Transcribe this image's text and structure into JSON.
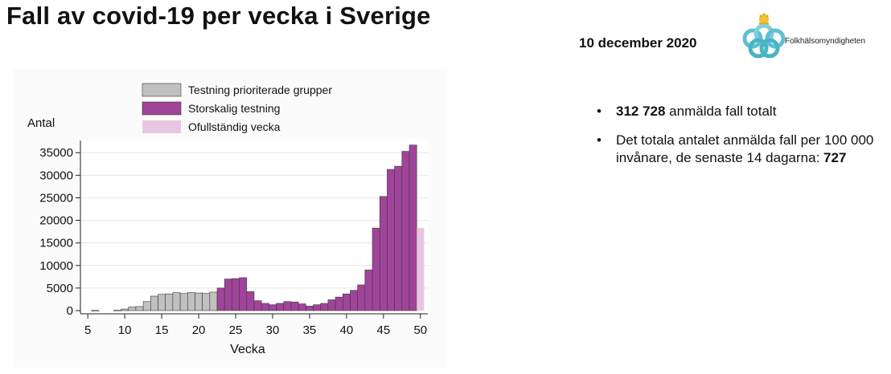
{
  "slide": {
    "title": "Fall av covid-19 per vecka i Sverige",
    "date": "10 december 2020",
    "logo_text": "Folkhälsomyndigheten",
    "bullet_char": "•",
    "bullets": [
      {
        "bold": "312 728",
        "text": " anmälda fall totalt"
      },
      {
        "text": "Det totala antalet anmälda fall per 100 000 invånare, de senaste 14 dagarna: ",
        "bold": "727"
      }
    ]
  },
  "chart_data": {
    "type": "bar",
    "ylabel": "Antal",
    "xlabel": "Vecka",
    "ylim": [
      0,
      37000
    ],
    "xlim": [
      4,
      51
    ],
    "xticks": [
      5,
      10,
      15,
      20,
      25,
      30,
      35,
      40,
      45,
      50
    ],
    "yticks": [
      0,
      5000,
      10000,
      15000,
      20000,
      25000,
      30000,
      35000
    ],
    "grid": true,
    "legend_position": "top",
    "series": [
      {
        "name": "Testning prioriterade grupper",
        "color": "#c0c0c0",
        "x": [
          6,
          9,
          10,
          11,
          12,
          13,
          14,
          15,
          16,
          17,
          18,
          19,
          20,
          21,
          22
        ],
        "values": [
          50,
          100,
          350,
          800,
          900,
          2000,
          3200,
          3600,
          3700,
          4000,
          3800,
          4000,
          3900,
          3800,
          4100
        ]
      },
      {
        "name": "Storskalig testning",
        "color": "#a0449a",
        "x": [
          23,
          24,
          25,
          26,
          27,
          28,
          29,
          30,
          31,
          32,
          33,
          34,
          35,
          36,
          37,
          38,
          39,
          40,
          41,
          42,
          43,
          44,
          45,
          46,
          47,
          48,
          49
        ],
        "values": [
          5000,
          7000,
          7100,
          7300,
          4200,
          2200,
          1600,
          1300,
          1600,
          2000,
          1900,
          1500,
          1000,
          1300,
          1600,
          2400,
          3000,
          3700,
          4500,
          5700,
          9000,
          18300,
          25300,
          31300,
          32000,
          35300,
          36700
        ]
      },
      {
        "name": "Ofullständig vecka",
        "color": "#e8c6e2",
        "x": [
          50
        ],
        "values": [
          18300
        ]
      }
    ]
  }
}
